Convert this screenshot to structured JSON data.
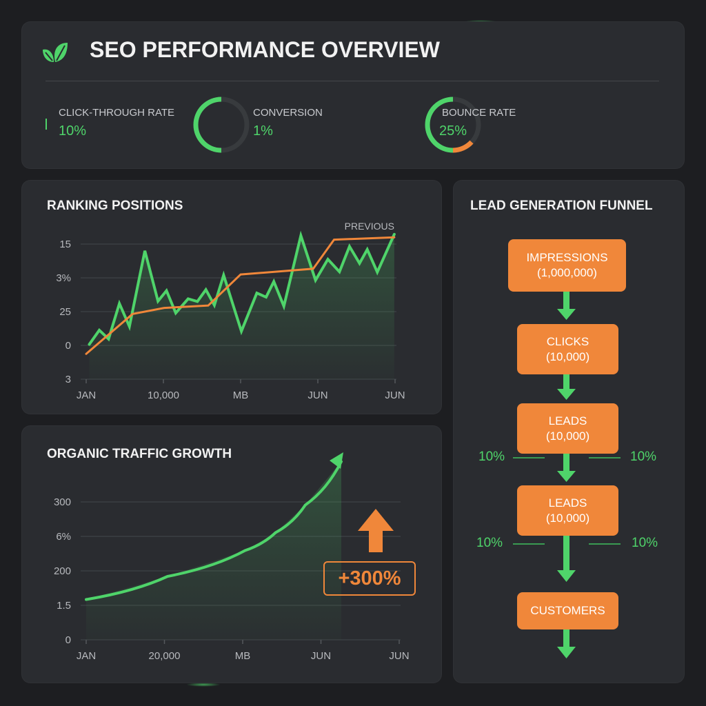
{
  "header": {
    "title": "SEO PERFORMANCE OVERVIEW",
    "logo_icon": "leaf-icon"
  },
  "kpis": [
    {
      "label": "CLICK-THROUGH RATE",
      "value": "10%"
    },
    {
      "label": "CONVERSION",
      "value": "1%",
      "ring_fill": 0.5
    },
    {
      "label": "BOUNCE RATE",
      "value": "25%",
      "ring_green": 0.62,
      "ring_orange": 0.13
    }
  ],
  "colors": {
    "green": "#4fd46a",
    "orange": "#f0873a",
    "panel": "#2a2c30",
    "background": "#1d1e21"
  },
  "chart_data": [
    {
      "type": "line",
      "title": "RANKING POSITIONS",
      "legend": "PREVIOUS",
      "legend_placement": "top-right",
      "x_tick_labels": [
        "JAN",
        "10,000",
        "MB",
        "JUN",
        "JUN"
      ],
      "y_tick_labels": [
        "3",
        "0",
        "25",
        "3%",
        "15"
      ],
      "grid": true,
      "series": [
        {
          "color": "#4fd46a",
          "area": true,
          "points": [
            [
              0.04,
              1.03
            ],
            [
              0.17,
              1.45
            ],
            [
              0.29,
              1.19
            ],
            [
              0.43,
              2.24
            ],
            [
              0.56,
              1.56
            ],
            [
              0.76,
              3.8
            ],
            [
              0.93,
              2.31
            ],
            [
              1.04,
              2.62
            ],
            [
              1.16,
              1.96
            ],
            [
              1.32,
              2.38
            ],
            [
              1.44,
              2.3
            ],
            [
              1.55,
              2.65
            ],
            [
              1.66,
              2.19
            ],
            [
              1.78,
              3.08
            ],
            [
              2.01,
              1.42
            ],
            [
              2.21,
              2.55
            ],
            [
              2.33,
              2.43
            ],
            [
              2.43,
              2.89
            ],
            [
              2.56,
              2.16
            ],
            [
              2.78,
              4.25
            ],
            [
              2.97,
              2.93
            ],
            [
              3.13,
              3.55
            ],
            [
              3.28,
              3.18
            ],
            [
              3.41,
              3.93
            ],
            [
              3.54,
              3.43
            ],
            [
              3.64,
              3.84
            ],
            [
              3.77,
              3.17
            ],
            [
              3.99,
              4.29
            ]
          ]
        },
        {
          "name": "PREVIOUS",
          "color": "#f0873a",
          "points": [
            [
              0,
              0.75
            ],
            [
              0.6,
              1.93
            ],
            [
              1.01,
              2.11
            ],
            [
              1.58,
              2.18
            ],
            [
              2.0,
              3.1
            ],
            [
              2.94,
              3.27
            ],
            [
              3.21,
              4.13
            ],
            [
              3.99,
              4.2
            ]
          ]
        }
      ]
    },
    {
      "type": "area",
      "title": "ORGANIC TRAFFIC GROWTH",
      "x_tick_labels": [
        "JAN",
        "20,000",
        "MB",
        "JUN",
        "JUN"
      ],
      "y_tick_labels": [
        "0",
        "1.5",
        "200",
        "6%",
        "300"
      ],
      "grid": true,
      "annotation": "+300%",
      "series": [
        {
          "color": "#4fd46a",
          "points": [
            [
              0,
              1.17
            ],
            [
              1.04,
              1.84
            ],
            [
              2.03,
              2.59
            ],
            [
              2.42,
              3.11
            ],
            [
              2.8,
              3.91
            ],
            [
              3.26,
              5.17
            ]
          ]
        }
      ]
    }
  ],
  "funnel": {
    "title": "LEAD GENERATION FUNNEL",
    "stages": [
      {
        "name": "IMPRESSIONS",
        "value": "(1,000,000)"
      },
      {
        "name": "CLICKS",
        "value": "(10,000)"
      },
      {
        "name": "LEADS",
        "value": "(10,000)"
      },
      {
        "name": "LEADS",
        "value": "(10,000)"
      },
      {
        "name": "CUSTOMERS",
        "value": ""
      }
    ],
    "rates": [
      {
        "left": "10%",
        "right": "10%"
      },
      {
        "left": "10%",
        "right": "10%"
      }
    ]
  }
}
